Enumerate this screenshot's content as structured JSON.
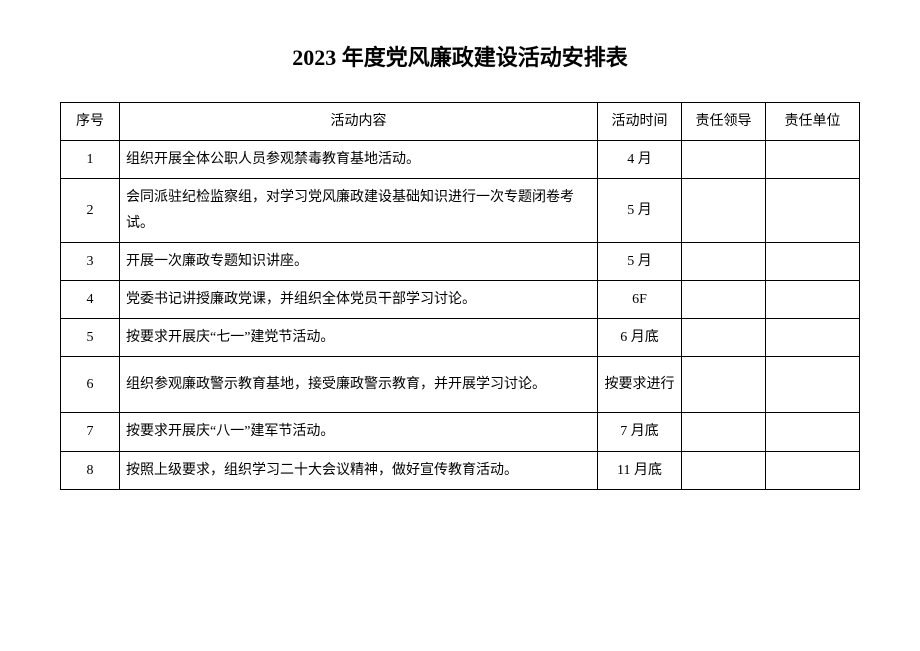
{
  "title": "2023 年度党风廉政建设活动安排表",
  "table": {
    "headers": {
      "seq": "序号",
      "content": "活动内容",
      "time": "活动时间",
      "leader": "责任领导",
      "unit": "责任单位"
    },
    "rows": [
      {
        "seq": "1",
        "content": "组织开展全体公职人员参观禁毒教育基地活动。",
        "time": "4 月",
        "leader": "",
        "unit": ""
      },
      {
        "seq": "2",
        "content": "会同派驻纪检监察组，对学习党风廉政建设基础知识进行一次专题闭卷考试。",
        "time": "5 月",
        "leader": "",
        "unit": ""
      },
      {
        "seq": "3",
        "content": "开展一次廉政专题知识讲座。",
        "time": "5 月",
        "leader": "",
        "unit": ""
      },
      {
        "seq": "4",
        "content": "党委书记讲授廉政党课，并组织全体党员干部学习讨论。",
        "time": "6F",
        "leader": "",
        "unit": ""
      },
      {
        "seq": "5",
        "content": "按要求开展庆“七一”建党节活动。",
        "time": "6 月底",
        "leader": "",
        "unit": ""
      },
      {
        "seq": "6",
        "content": "组织参观廉政警示教育基地，接受廉政警示教育，并开展学习讨论。",
        "time": "按要求进行",
        "leader": "",
        "unit": ""
      },
      {
        "seq": "7",
        "content": "按要求开展庆“八一”建军节活动。",
        "time": "7 月底",
        "leader": "",
        "unit": ""
      },
      {
        "seq": "8",
        "content": "按照上级要求，组织学习二十大会议精神，做好宣传教育活动。",
        "time": "11 月底",
        "leader": "",
        "unit": ""
      }
    ]
  },
  "colors": {
    "border": "#000000",
    "background": "#ffffff",
    "text": "#000000"
  }
}
